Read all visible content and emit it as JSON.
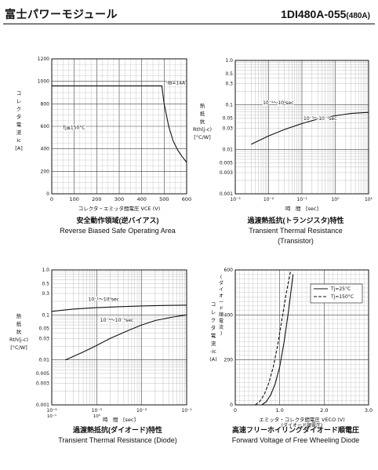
{
  "header": {
    "brand": "富士パワーモジュール",
    "model": "1DI480A-055",
    "rating": "(480A)"
  },
  "captions": [
    {
      "jp": "安全動作領域(逆バイアス)",
      "en": "Reverse Biased Safe Operating Area",
      "en2": ""
    },
    {
      "jp": "過渡熱抵抗(トランジスタ)特性",
      "en": "Transient Thermal Resistance",
      "en2": "(Transistor)"
    },
    {
      "jp": "過渡熱抵抗(ダイオード)特性",
      "en": "Transient Thermal Resistance (Diode)",
      "en2": ""
    },
    {
      "jp": "高速フリーホイリングダイオード順電圧",
      "en": "Forward Voltage of Free Wheeling Diode",
      "en2": ""
    }
  ],
  "chart_data": [
    {
      "type": "line",
      "xlabel": "コレクタ・エミッタ間電圧 V_CE (V)",
      "ylabel": [
        "コ",
        "レ",
        "ク",
        "タ",
        "電",
        "流",
        "Ic",
        "[A]"
      ],
      "xlim": [
        0,
        600
      ],
      "ylim": [
        0,
        1200
      ],
      "xticks": [
        0,
        100,
        200,
        300,
        400,
        500,
        600
      ],
      "yticks": [
        0,
        200,
        400,
        600,
        800,
        1000,
        1200
      ],
      "grid": true,
      "series": [
        {
          "x": [
            0,
            490,
            490,
            500,
            520,
            540,
            560,
            580,
            600
          ],
          "y": [
            960,
            960,
            950,
            800,
            600,
            470,
            390,
            330,
            280
          ]
        }
      ],
      "annotations": [
        {
          "text": "-I_B=14A",
          "x": 500,
          "y": 960
        },
        {
          "text": "Tj≦150°C",
          "x": 40,
          "y": 560
        }
      ]
    },
    {
      "type": "line",
      "xlabel": "時　間　[sec]",
      "ylabel": [
        "熱",
        "抵",
        "抗",
        "Rth(j-c)",
        "[°C/W]"
      ],
      "xscale": "log",
      "yscale": "log",
      "xlim": [
        0.001,
        10
      ],
      "ylim": [
        0.001,
        1
      ],
      "xticks": [
        "10^-3",
        "10^-2",
        "10^-1",
        "10^0",
        "10^1"
      ],
      "yticks": [
        "0.001",
        "0.003",
        "0.005",
        "0.01",
        "0.03",
        "0.05",
        "0.1",
        "0.3",
        "0.5",
        "1.0"
      ],
      "grid": true,
      "series": [
        {
          "x": [
            0.003,
            0.01,
            0.03,
            0.1,
            0.3,
            1,
            3,
            10
          ],
          "y": [
            0.013,
            0.02,
            0.028,
            0.038,
            0.048,
            0.057,
            0.064,
            0.068
          ]
        }
      ],
      "annotations": [
        {
          "text": "10^-1～10^1sec",
          "x": 0.006,
          "y": 0.095
        },
        {
          "text": "10^-3～10^-1sec",
          "x": 0.1,
          "y": 0.042
        }
      ]
    },
    {
      "type": "line",
      "xlabel": "時　間　[sec]",
      "ylabel": [
        "熱",
        "抵",
        "抗",
        "Rth(j-c)",
        "[°C/W]"
      ],
      "xscale": "log",
      "yscale": "log",
      "xlim": [
        0.0001,
        0.1
      ],
      "ylim": [
        0.001,
        1
      ],
      "xticks": [
        "10^-4",
        "10^-3",
        "10^-2",
        "10^-1"
      ],
      "xticks_secondary": [
        "10^-1",
        "10^0"
      ],
      "yticks": [
        "0.001",
        "0.003",
        "0.005",
        "0.01",
        "0.03",
        "0.05",
        "0.1",
        "0.3",
        "0.5",
        "1.0"
      ],
      "grid": true,
      "series": [
        {
          "x": [
            0.0002,
            0.0005,
            0.001,
            0.002,
            0.005,
            0.01,
            0.02,
            0.05,
            0.1
          ],
          "y": [
            0.01,
            0.015,
            0.021,
            0.03,
            0.045,
            0.06,
            0.075,
            0.09,
            0.1
          ]
        },
        {
          "x": [
            0.0001,
            0.0003,
            0.001,
            0.003,
            0.01,
            0.03,
            0.1
          ],
          "y": [
            0.12,
            0.135,
            0.145,
            0.152,
            0.158,
            0.162,
            0.165
          ]
        }
      ],
      "annotations": [
        {
          "text": "10^-1～10^0sec",
          "x": 0.0006,
          "y": 0.19
        },
        {
          "text": "10^-4～10^-1sec",
          "x": 0.0011,
          "y": 0.065
        }
      ]
    },
    {
      "type": "line",
      "xlabel": "エミッタ・コレクタ間電圧 V_ECO (V)",
      "xlabel2": "(ダイオード順電圧)",
      "ylabel": [
        "コ",
        "レ",
        "ク",
        "タ",
        "電",
        "流",
        "-Ic",
        "(A)"
      ],
      "ylabel2": [
        "(",
        "ダ",
        "イ",
        "オ",
        "ー",
        "ド",
        "順",
        "電",
        "流",
        ")"
      ],
      "xlim": [
        0,
        3.0
      ],
      "ylim": [
        0,
        600
      ],
      "xticks": [
        0,
        1.0,
        2.0,
        3.0
      ],
      "xtick_labels": [
        "0",
        "1.0",
        "2.0",
        "3.0"
      ],
      "yticks": [
        0,
        200,
        400,
        600
      ],
      "grid": true,
      "legend": "top-right",
      "series": [
        {
          "name": "Tj=25°C",
          "dash": false,
          "x": [
            0.6,
            0.7,
            0.8,
            0.9,
            1.0,
            1.1,
            1.2,
            1.3
          ],
          "y": [
            0,
            15,
            45,
            95,
            170,
            280,
            420,
            580
          ]
        },
        {
          "name": "Tj=150°C",
          "dash": true,
          "x": [
            0.45,
            0.55,
            0.65,
            0.75,
            0.85,
            0.95,
            1.05,
            1.15,
            1.25
          ],
          "y": [
            0,
            15,
            45,
            95,
            165,
            260,
            380,
            500,
            600
          ]
        }
      ]
    }
  ]
}
